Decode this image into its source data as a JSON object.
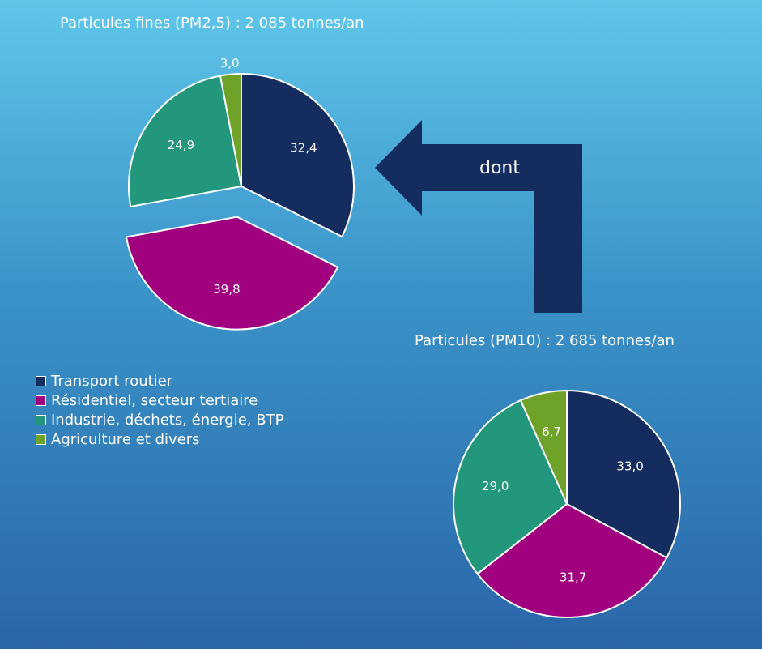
{
  "colors": {
    "transport": "#152c5e",
    "residentiel": "#a1007f",
    "industrie": "#22977b",
    "agriculture": "#6fa229",
    "arrow": "#152c5e"
  },
  "arrow_label": "dont",
  "legend": [
    {
      "label": "Transport routier",
      "color": "#152c5e"
    },
    {
      "label": "Résidentiel, secteur tertiaire",
      "color": "#a1007f"
    },
    {
      "label": "Industrie, déchets, énergie, BTP",
      "color": "#22977b"
    },
    {
      "label": "Agriculture et divers",
      "color": "#6fa229"
    }
  ],
  "chart_data": [
    {
      "type": "pie",
      "title": "Particules fines (PM2,5) : 2 085 tonnes/an",
      "slices": [
        {
          "category": "Transport routier",
          "value": 32.4,
          "label": "32,4",
          "exploded": false
        },
        {
          "category": "Résidentiel, secteur tertiaire",
          "value": 39.8,
          "label": "39,8",
          "exploded": true
        },
        {
          "category": "Industrie, déchets, énergie, BTP",
          "value": 24.9,
          "label": "24,9",
          "exploded": false
        },
        {
          "category": "Agriculture et divers",
          "value": 3.0,
          "label": "3,0",
          "exploded": false
        }
      ]
    },
    {
      "type": "pie",
      "title": "Particules (PM10) : 2 685 tonnes/an",
      "slices": [
        {
          "category": "Transport routier",
          "value": 33.0,
          "label": "33,0",
          "exploded": false
        },
        {
          "category": "Résidentiel, secteur tertiaire",
          "value": 31.7,
          "label": "31,7",
          "exploded": false
        },
        {
          "category": "Industrie, déchets, énergie, BTP",
          "value": 29.0,
          "label": "29,0",
          "exploded": false
        },
        {
          "category": "Agriculture et divers",
          "value": 6.7,
          "label": "6,7",
          "exploded": false
        }
      ]
    }
  ]
}
